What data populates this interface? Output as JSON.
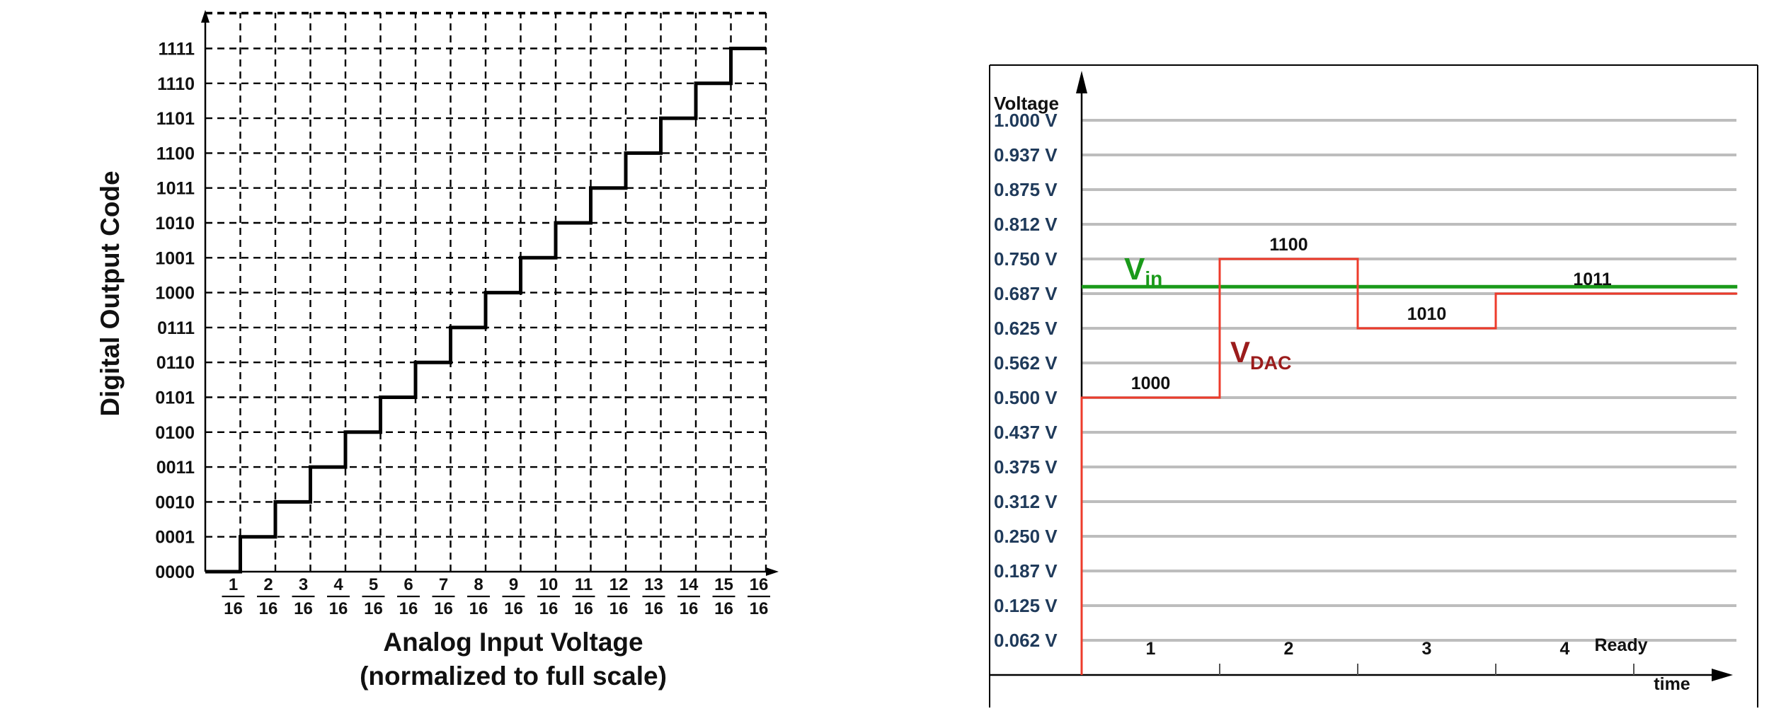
{
  "chart_data": [
    {
      "type": "line",
      "title": "",
      "xlabel": "Analog Input Voltage",
      "xlabel2": "(normalized to full scale)",
      "ylabel": "Digital Output Code",
      "x_ticks": [
        {
          "num": "1",
          "den": "16"
        },
        {
          "num": "2",
          "den": "16"
        },
        {
          "num": "3",
          "den": "16"
        },
        {
          "num": "4",
          "den": "16"
        },
        {
          "num": "5",
          "den": "16"
        },
        {
          "num": "6",
          "den": "16"
        },
        {
          "num": "7",
          "den": "16"
        },
        {
          "num": "8",
          "den": "16"
        },
        {
          "num": "9",
          "den": "16"
        },
        {
          "num": "10",
          "den": "16"
        },
        {
          "num": "11",
          "den": "16"
        },
        {
          "num": "12",
          "den": "16"
        },
        {
          "num": "13",
          "den": "16"
        },
        {
          "num": "14",
          "den": "16"
        },
        {
          "num": "15",
          "den": "16"
        },
        {
          "num": "16",
          "den": "16"
        }
      ],
      "y_ticks": [
        "0000",
        "0001",
        "0010",
        "0011",
        "0100",
        "0101",
        "0110",
        "0111",
        "1000",
        "1001",
        "1010",
        "1011",
        "1100",
        "1101",
        "1110",
        "1111"
      ],
      "xlim": [
        0,
        16
      ],
      "ylim": [
        0,
        16
      ],
      "grid": true,
      "series": [
        {
          "x": [
            0,
            1,
            1,
            2,
            2,
            3,
            3,
            4,
            4,
            5,
            5,
            6,
            6,
            7,
            7,
            8,
            8,
            9,
            9,
            10,
            10,
            11,
            11,
            12,
            12,
            13,
            13,
            14,
            14,
            15,
            15,
            16
          ],
          "y": [
            0,
            0,
            1,
            1,
            2,
            2,
            3,
            3,
            4,
            4,
            5,
            5,
            6,
            6,
            7,
            7,
            8,
            8,
            9,
            9,
            10,
            10,
            11,
            11,
            12,
            12,
            13,
            13,
            14,
            14,
            15,
            15
          ]
        }
      ],
      "colors": {
        "line": "#000000",
        "grid": "#000000"
      }
    },
    {
      "type": "line",
      "title": "",
      "ylabel": "Voltage",
      "xlabel": "time",
      "y_ticks": [
        "1.000 V",
        "0.937 V",
        "0.875 V",
        "0.812 V",
        "0.750 V",
        "0.687 V",
        "0.625 V",
        "0.562 V",
        "0.500 V",
        "0.437 V",
        "0.375 V",
        "0.312 V",
        "0.250 V",
        "0.187 V",
        "0.125 V",
        "0.062 V"
      ],
      "steps": [
        "1",
        "2",
        "3",
        "4"
      ],
      "ready_label": "Ready",
      "ylim": [
        0,
        1.0625
      ],
      "xlim": [
        0,
        4.75
      ],
      "grid": true,
      "series": [
        {
          "name": "V",
          "name_sub": "in",
          "color": "#1a9a1a",
          "x": [
            0,
            4.75
          ],
          "y": [
            0.7,
            0.7
          ]
        },
        {
          "name": "V",
          "name_sub": "DAC",
          "color": "#ee3b2b",
          "x": [
            0,
            0,
            1,
            1,
            2,
            2,
            3,
            3,
            4.75
          ],
          "y": [
            0,
            0.5,
            0.5,
            0.75,
            0.75,
            0.625,
            0.625,
            0.6875,
            0.6875
          ]
        }
      ],
      "codes": [
        {
          "label": "1000",
          "x": 0.5,
          "y": 0.5
        },
        {
          "label": "1100",
          "x": 1.5,
          "y": 0.75
        },
        {
          "label": "1010",
          "x": 2.5,
          "y": 0.625
        },
        {
          "label": "1011",
          "x": 3.7,
          "y": 0.6875
        }
      ],
      "colors": {
        "grid": "#bdbdbd",
        "tick_text": "#1f3a5a",
        "frame": "#000000"
      }
    }
  ]
}
